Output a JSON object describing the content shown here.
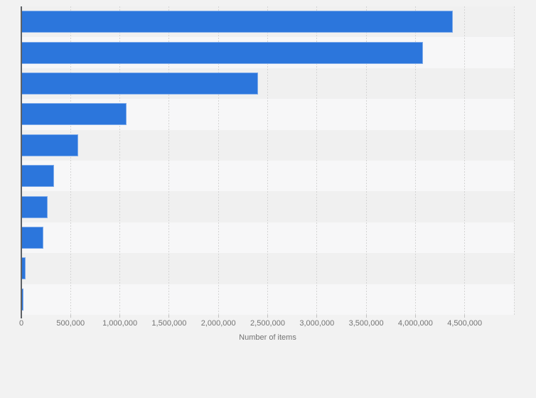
{
  "page": {
    "background_color": "#f2f2f2"
  },
  "chart_data": {
    "type": "bar",
    "orientation": "horizontal",
    "title": "",
    "xlabel": "Number of items",
    "ylabel": "",
    "categories": [
      "",
      "",
      "",
      "",
      "",
      "",
      "",
      "",
      "",
      ""
    ],
    "values": [
      4380000,
      4080000,
      2400000,
      1070000,
      580000,
      335000,
      265000,
      225000,
      40000,
      20000
    ],
    "xlim": [
      0,
      5000000
    ],
    "xticks": [
      0,
      500000,
      1000000,
      1500000,
      2000000,
      2500000,
      3000000,
      3500000,
      4000000,
      4500000
    ],
    "xtick_labels": [
      "0",
      "500,000",
      "1,000,000",
      "1,500,000",
      "2,000,000",
      "2,500,000",
      "3,000,000",
      "3,500,000",
      "4,000,000",
      "4,500,000"
    ],
    "grid": true,
    "grid_step": 500000,
    "legend": false,
    "bar_color": "#2c76dc",
    "row_stripe_colors": [
      "#f0f0f0",
      "#f7f7f8"
    ],
    "gridline_color": "#d4d4d4",
    "axis_line_color": "#5e6165",
    "label_color": "#737373"
  }
}
